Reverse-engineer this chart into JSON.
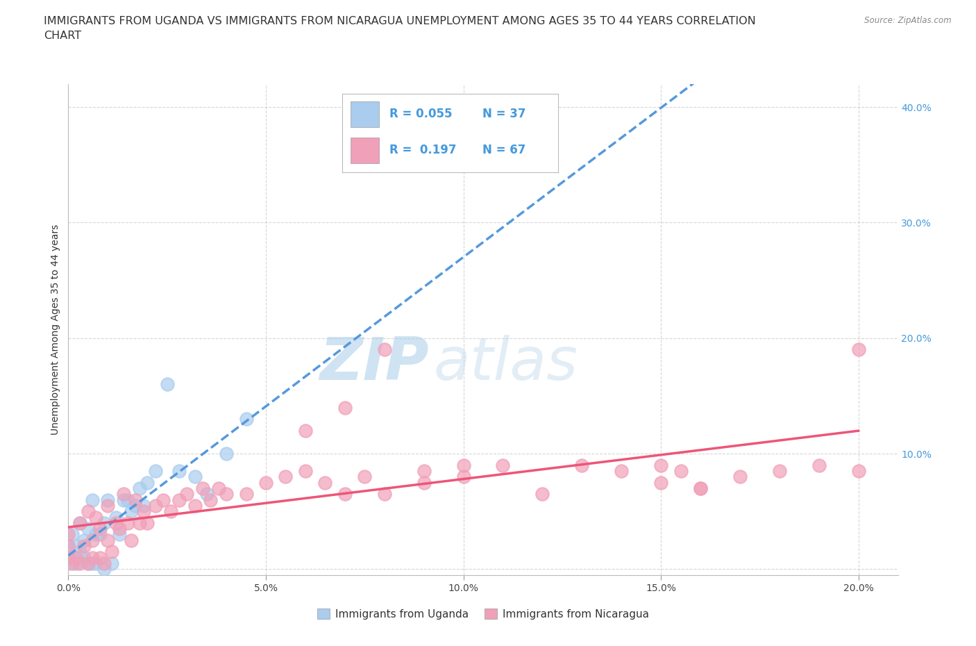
{
  "title": "IMMIGRANTS FROM UGANDA VS IMMIGRANTS FROM NICARAGUA UNEMPLOYMENT AMONG AGES 35 TO 44 YEARS CORRELATION\nCHART",
  "source_text": "Source: ZipAtlas.com",
  "ylabel": "Unemployment Among Ages 35 to 44 years",
  "xlim": [
    0.0,
    0.21
  ],
  "ylim": [
    -0.005,
    0.42
  ],
  "watermark_zip": "ZIP",
  "watermark_atlas": "atlas",
  "bg_color": "#ffffff",
  "grid_color": "#cccccc",
  "uganda_color": "#aaccee",
  "nicaragua_color": "#f0a0b8",
  "uganda_line_color": "#5599dd",
  "nicaragua_line_color": "#ee5577",
  "legend_R_uganda": "0.055",
  "legend_N_uganda": "37",
  "legend_R_nicaragua": "0.197",
  "legend_N_nicaragua": "67",
  "legend_label_uganda": "Immigrants from Uganda",
  "legend_label_nicaragua": "Immigrants from Nicaragua",
  "title_fontsize": 11.5,
  "axis_label_fontsize": 10,
  "tick_fontsize": 10,
  "legend_fontsize": 12,
  "watermark_fontsize_zip": 62,
  "watermark_fontsize_atlas": 62,
  "watermark_color": "#c8dff0",
  "uganda_x": [
    0.0,
    0.0,
    0.001,
    0.001,
    0.002,
    0.002,
    0.003,
    0.003,
    0.004,
    0.004,
    0.005,
    0.005,
    0.006,
    0.006,
    0.007,
    0.007,
    0.008,
    0.009,
    0.009,
    0.01,
    0.011,
    0.012,
    0.013,
    0.014,
    0.015,
    0.016,
    0.017,
    0.018,
    0.019,
    0.02,
    0.022,
    0.025,
    0.028,
    0.032,
    0.035,
    0.04,
    0.045
  ],
  "uganda_y": [
    0.005,
    0.02,
    0.01,
    0.03,
    0.005,
    0.02,
    0.015,
    0.04,
    0.01,
    0.025,
    0.005,
    0.035,
    0.005,
    0.06,
    0.005,
    0.03,
    0.03,
    0.04,
    0.0,
    0.06,
    0.005,
    0.045,
    0.03,
    0.06,
    0.06,
    0.05,
    0.055,
    0.07,
    0.055,
    0.075,
    0.085,
    0.16,
    0.085,
    0.08,
    0.065,
    0.1,
    0.13
  ],
  "nicaragua_x": [
    0.0,
    0.0,
    0.0,
    0.001,
    0.002,
    0.003,
    0.003,
    0.004,
    0.005,
    0.005,
    0.006,
    0.006,
    0.007,
    0.008,
    0.008,
    0.009,
    0.01,
    0.01,
    0.011,
    0.012,
    0.013,
    0.014,
    0.015,
    0.016,
    0.017,
    0.018,
    0.019,
    0.02,
    0.022,
    0.024,
    0.026,
    0.028,
    0.03,
    0.032,
    0.034,
    0.036,
    0.038,
    0.04,
    0.045,
    0.05,
    0.055,
    0.06,
    0.065,
    0.07,
    0.075,
    0.08,
    0.09,
    0.1,
    0.11,
    0.12,
    0.13,
    0.14,
    0.15,
    0.155,
    0.16,
    0.17,
    0.18,
    0.19,
    0.2,
    0.2,
    0.06,
    0.07,
    0.08,
    0.09,
    0.1,
    0.15,
    0.16
  ],
  "nicaragua_y": [
    0.01,
    0.02,
    0.03,
    0.005,
    0.01,
    0.005,
    0.04,
    0.02,
    0.005,
    0.05,
    0.01,
    0.025,
    0.045,
    0.01,
    0.035,
    0.005,
    0.025,
    0.055,
    0.015,
    0.04,
    0.035,
    0.065,
    0.04,
    0.025,
    0.06,
    0.04,
    0.05,
    0.04,
    0.055,
    0.06,
    0.05,
    0.06,
    0.065,
    0.055,
    0.07,
    0.06,
    0.07,
    0.065,
    0.065,
    0.075,
    0.08,
    0.085,
    0.075,
    0.065,
    0.08,
    0.065,
    0.085,
    0.08,
    0.09,
    0.065,
    0.09,
    0.085,
    0.09,
    0.085,
    0.07,
    0.08,
    0.085,
    0.09,
    0.085,
    0.19,
    0.12,
    0.14,
    0.19,
    0.075,
    0.09,
    0.075,
    0.07
  ]
}
